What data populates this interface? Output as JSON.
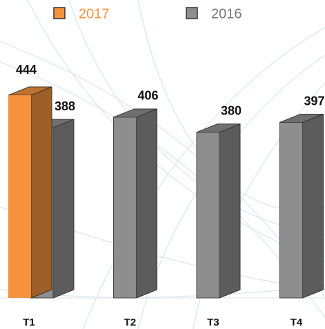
{
  "chart_data": {
    "type": "bar3d",
    "categories": [
      "T1",
      "T2",
      "T3",
      "T4"
    ],
    "series": [
      {
        "name": "2017",
        "color": "#f5923e",
        "values": [
          444,
          null,
          null,
          null
        ]
      },
      {
        "name": "2016",
        "color": "#8e8e8e",
        "values": [
          388,
          406,
          380,
          397
        ]
      }
    ],
    "ylim": [
      94,
      450
    ],
    "legend": "top"
  }
}
